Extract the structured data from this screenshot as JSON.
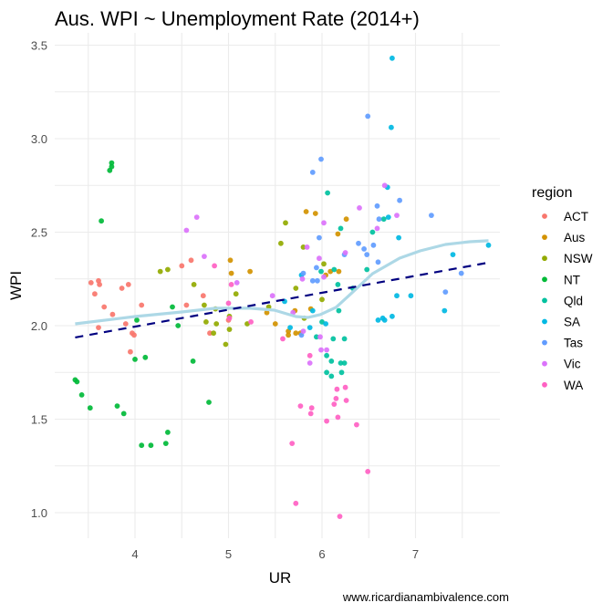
{
  "chart_data": {
    "type": "scatter",
    "title": "Aus. WPI ~ Unemployment Rate (2014+)",
    "xlabel": "UR",
    "ylabel": "WPI",
    "caption": "www.ricardianambivalence.com",
    "xlim": [
      3.3,
      7.85
    ],
    "ylim": [
      0.9,
      3.55
    ],
    "x_ticks": [
      4,
      5,
      6,
      7
    ],
    "x_tick_labels": [
      "4",
      "5",
      "6",
      "7"
    ],
    "y_ticks": [
      1.0,
      1.5,
      2.0,
      2.5,
      3.0,
      3.5
    ],
    "y_tick_labels": [
      "1.0",
      "1.5",
      "2.0",
      "2.5",
      "3.0",
      "3.5"
    ],
    "grid": true,
    "legend": {
      "title": "region",
      "position": "right"
    },
    "series": [
      {
        "name": "ACT",
        "color": "#F8766D",
        "points": [
          [
            3.61,
            1.99
          ],
          [
            3.9,
            2.01
          ],
          [
            3.97,
            1.96
          ],
          [
            3.99,
            1.95
          ],
          [
            3.95,
            1.86
          ],
          [
            4.8,
            1.96
          ],
          [
            5.0,
            2.03
          ],
          [
            4.5,
            2.32
          ],
          [
            4.6,
            2.35
          ],
          [
            3.53,
            2.23
          ],
          [
            3.61,
            2.24
          ],
          [
            3.62,
            2.22
          ],
          [
            3.57,
            2.17
          ],
          [
            3.86,
            2.2
          ],
          [
            3.93,
            2.22
          ],
          [
            3.67,
            2.1
          ],
          [
            3.76,
            2.06
          ],
          [
            4.07,
            2.11
          ],
          [
            4.55,
            2.11
          ],
          [
            4.73,
            2.16
          ]
        ]
      },
      {
        "name": "Aus",
        "color": "#D39200",
        "points": [
          [
            5.02,
            2.35
          ],
          [
            5.03,
            2.28
          ],
          [
            5.23,
            2.29
          ],
          [
            5.83,
            2.61
          ],
          [
            5.93,
            2.6
          ],
          [
            6.26,
            2.57
          ],
          [
            6.17,
            2.49
          ],
          [
            6.09,
            2.29
          ],
          [
            6.18,
            2.29
          ],
          [
            6.04,
            2.27
          ],
          [
            5.41,
            2.07
          ],
          [
            5.5,
            2.01
          ],
          [
            5.71,
            2.08
          ],
          [
            5.88,
            2.09
          ],
          [
            5.64,
            1.97
          ],
          [
            5.64,
            1.95
          ],
          [
            5.72,
            1.96
          ],
          [
            5.77,
            1.96
          ]
        ]
      },
      {
        "name": "NSW",
        "color": "#93AA00",
        "points": [
          [
            4.27,
            2.29
          ],
          [
            4.35,
            2.3
          ],
          [
            4.63,
            2.22
          ],
          [
            4.74,
            2.11
          ],
          [
            4.86,
            2.09
          ],
          [
            4.76,
            2.02
          ],
          [
            4.87,
            2.01
          ],
          [
            5.01,
            2.05
          ],
          [
            5.08,
            2.17
          ],
          [
            5.2,
            2.01
          ],
          [
            5.01,
            1.98
          ],
          [
            4.84,
            1.96
          ],
          [
            4.97,
            1.9
          ],
          [
            5.61,
            2.55
          ],
          [
            5.56,
            2.44
          ],
          [
            5.8,
            2.42
          ],
          [
            6.02,
            2.33
          ],
          [
            5.72,
            2.2
          ],
          [
            6.0,
            2.14
          ],
          [
            5.43,
            2.1
          ],
          [
            5.81,
            2.04
          ]
        ]
      },
      {
        "name": "NT",
        "color": "#00BA38",
        "points": [
          [
            3.75,
            2.87
          ],
          [
            3.75,
            2.85
          ],
          [
            3.73,
            2.83
          ],
          [
            3.64,
            2.56
          ],
          [
            4.4,
            2.1
          ],
          [
            4.02,
            2.03
          ],
          [
            4.46,
            2.0
          ],
          [
            4.0,
            1.82
          ],
          [
            4.11,
            1.83
          ],
          [
            4.62,
            1.81
          ],
          [
            3.36,
            1.71
          ],
          [
            3.38,
            1.7
          ],
          [
            3.43,
            1.63
          ],
          [
            3.52,
            1.56
          ],
          [
            3.81,
            1.57
          ],
          [
            3.88,
            1.53
          ],
          [
            4.79,
            1.59
          ],
          [
            4.35,
            1.43
          ],
          [
            4.07,
            1.36
          ],
          [
            4.17,
            1.36
          ],
          [
            4.33,
            1.37
          ]
        ]
      },
      {
        "name": "Qld",
        "color": "#00C19F",
        "points": [
          [
            6.06,
            2.71
          ],
          [
            6.2,
            2.52
          ],
          [
            5.99,
            2.29
          ],
          [
            6.13,
            2.3
          ],
          [
            6.17,
            2.22
          ],
          [
            6.18,
            2.08
          ],
          [
            6.33,
            2.2
          ],
          [
            6.66,
            2.57
          ],
          [
            6.54,
            2.5
          ],
          [
            6.48,
            2.3
          ],
          [
            6.0,
            2.02
          ],
          [
            5.94,
            1.94
          ],
          [
            6.12,
            1.93
          ],
          [
            6.24,
            1.93
          ],
          [
            6.05,
            1.84
          ],
          [
            6.1,
            1.81
          ],
          [
            6.2,
            1.8
          ],
          [
            6.24,
            1.8
          ],
          [
            6.05,
            1.75
          ],
          [
            6.1,
            1.73
          ],
          [
            6.21,
            1.75
          ]
        ]
      },
      {
        "name": "SA",
        "color": "#00B9E3",
        "points": [
          [
            6.75,
            3.43
          ],
          [
            6.74,
            3.06
          ],
          [
            6.7,
            2.74
          ],
          [
            6.71,
            2.58
          ],
          [
            6.82,
            2.47
          ],
          [
            7.78,
            2.43
          ],
          [
            7.4,
            2.38
          ],
          [
            6.8,
            2.16
          ],
          [
            6.95,
            2.16
          ],
          [
            7.31,
            2.08
          ],
          [
            6.75,
            2.05
          ],
          [
            6.65,
            2.04
          ],
          [
            6.67,
            2.03
          ],
          [
            6.6,
            2.03
          ],
          [
            5.78,
            2.27
          ],
          [
            5.6,
            2.13
          ],
          [
            5.9,
            2.08
          ],
          [
            5.66,
            1.99
          ],
          [
            5.87,
            1.99
          ],
          [
            6.04,
            2.01
          ]
        ]
      },
      {
        "name": "Tas",
        "color": "#619CFF",
        "points": [
          [
            6.49,
            3.12
          ],
          [
            6.83,
            2.67
          ],
          [
            6.59,
            2.64
          ],
          [
            6.61,
            2.57
          ],
          [
            7.17,
            2.59
          ],
          [
            6.39,
            2.44
          ],
          [
            6.45,
            2.41
          ],
          [
            6.55,
            2.43
          ],
          [
            6.48,
            2.38
          ],
          [
            6.6,
            2.34
          ],
          [
            7.49,
            2.28
          ],
          [
            7.32,
            2.18
          ],
          [
            5.99,
            2.89
          ],
          [
            5.9,
            2.82
          ],
          [
            5.97,
            2.47
          ],
          [
            6.24,
            2.38
          ],
          [
            5.94,
            2.31
          ],
          [
            5.8,
            2.28
          ],
          [
            5.9,
            2.24
          ],
          [
            5.95,
            2.24
          ],
          [
            5.78,
            1.95
          ]
        ]
      },
      {
        "name": "Vic",
        "color": "#DB72FB",
        "points": [
          [
            4.66,
            2.58
          ],
          [
            4.55,
            2.51
          ],
          [
            4.74,
            2.37
          ],
          [
            5.09,
            2.23
          ],
          [
            6.67,
            2.75
          ],
          [
            6.4,
            2.63
          ],
          [
            6.8,
            2.59
          ],
          [
            6.59,
            2.52
          ],
          [
            6.02,
            2.55
          ],
          [
            5.84,
            2.42
          ],
          [
            5.97,
            2.36
          ],
          [
            6.25,
            2.39
          ],
          [
            5.79,
            2.25
          ],
          [
            6.02,
            2.26
          ],
          [
            5.47,
            2.16
          ],
          [
            5.69,
            2.07
          ],
          [
            5.8,
            1.97
          ],
          [
            5.98,
            1.94
          ],
          [
            5.99,
            1.87
          ],
          [
            6.05,
            1.87
          ],
          [
            5.87,
            1.8
          ]
        ]
      },
      {
        "name": "WA",
        "color": "#FF61C3",
        "points": [
          [
            4.85,
            2.32
          ],
          [
            5.03,
            2.22
          ],
          [
            5.0,
            2.12
          ],
          [
            5.01,
            2.04
          ],
          [
            5.24,
            2.02
          ],
          [
            5.58,
            1.93
          ],
          [
            5.87,
            1.84
          ],
          [
            6.16,
            1.66
          ],
          [
            6.25,
            1.67
          ],
          [
            6.15,
            1.61
          ],
          [
            6.26,
            1.6
          ],
          [
            6.13,
            1.58
          ],
          [
            5.77,
            1.57
          ],
          [
            5.89,
            1.56
          ],
          [
            5.88,
            1.53
          ],
          [
            6.05,
            1.49
          ],
          [
            6.17,
            1.51
          ],
          [
            6.37,
            1.47
          ],
          [
            5.68,
            1.37
          ],
          [
            6.49,
            1.22
          ],
          [
            5.72,
            1.05
          ],
          [
            6.19,
            0.98
          ]
        ]
      }
    ],
    "lines": [
      {
        "name": "linear-fit",
        "style": "dashed",
        "color": "#000080",
        "points": [
          [
            3.36,
            1.937
          ],
          [
            7.78,
            2.337
          ]
        ]
      },
      {
        "name": "loess-fit",
        "style": "solid",
        "color": "#ADD8E6",
        "points": [
          [
            3.36,
            2.01
          ],
          [
            4.0,
            2.049
          ],
          [
            4.5,
            2.073
          ],
          [
            4.86,
            2.093
          ],
          [
            5.23,
            2.093
          ],
          [
            5.49,
            2.083
          ],
          [
            5.72,
            2.049
          ],
          [
            5.85,
            2.044
          ],
          [
            5.98,
            2.059
          ],
          [
            6.15,
            2.098
          ],
          [
            6.34,
            2.185
          ],
          [
            6.54,
            2.278
          ],
          [
            6.83,
            2.361
          ],
          [
            7.05,
            2.4
          ],
          [
            7.32,
            2.434
          ],
          [
            7.58,
            2.449
          ],
          [
            7.78,
            2.454
          ]
        ]
      }
    ]
  }
}
